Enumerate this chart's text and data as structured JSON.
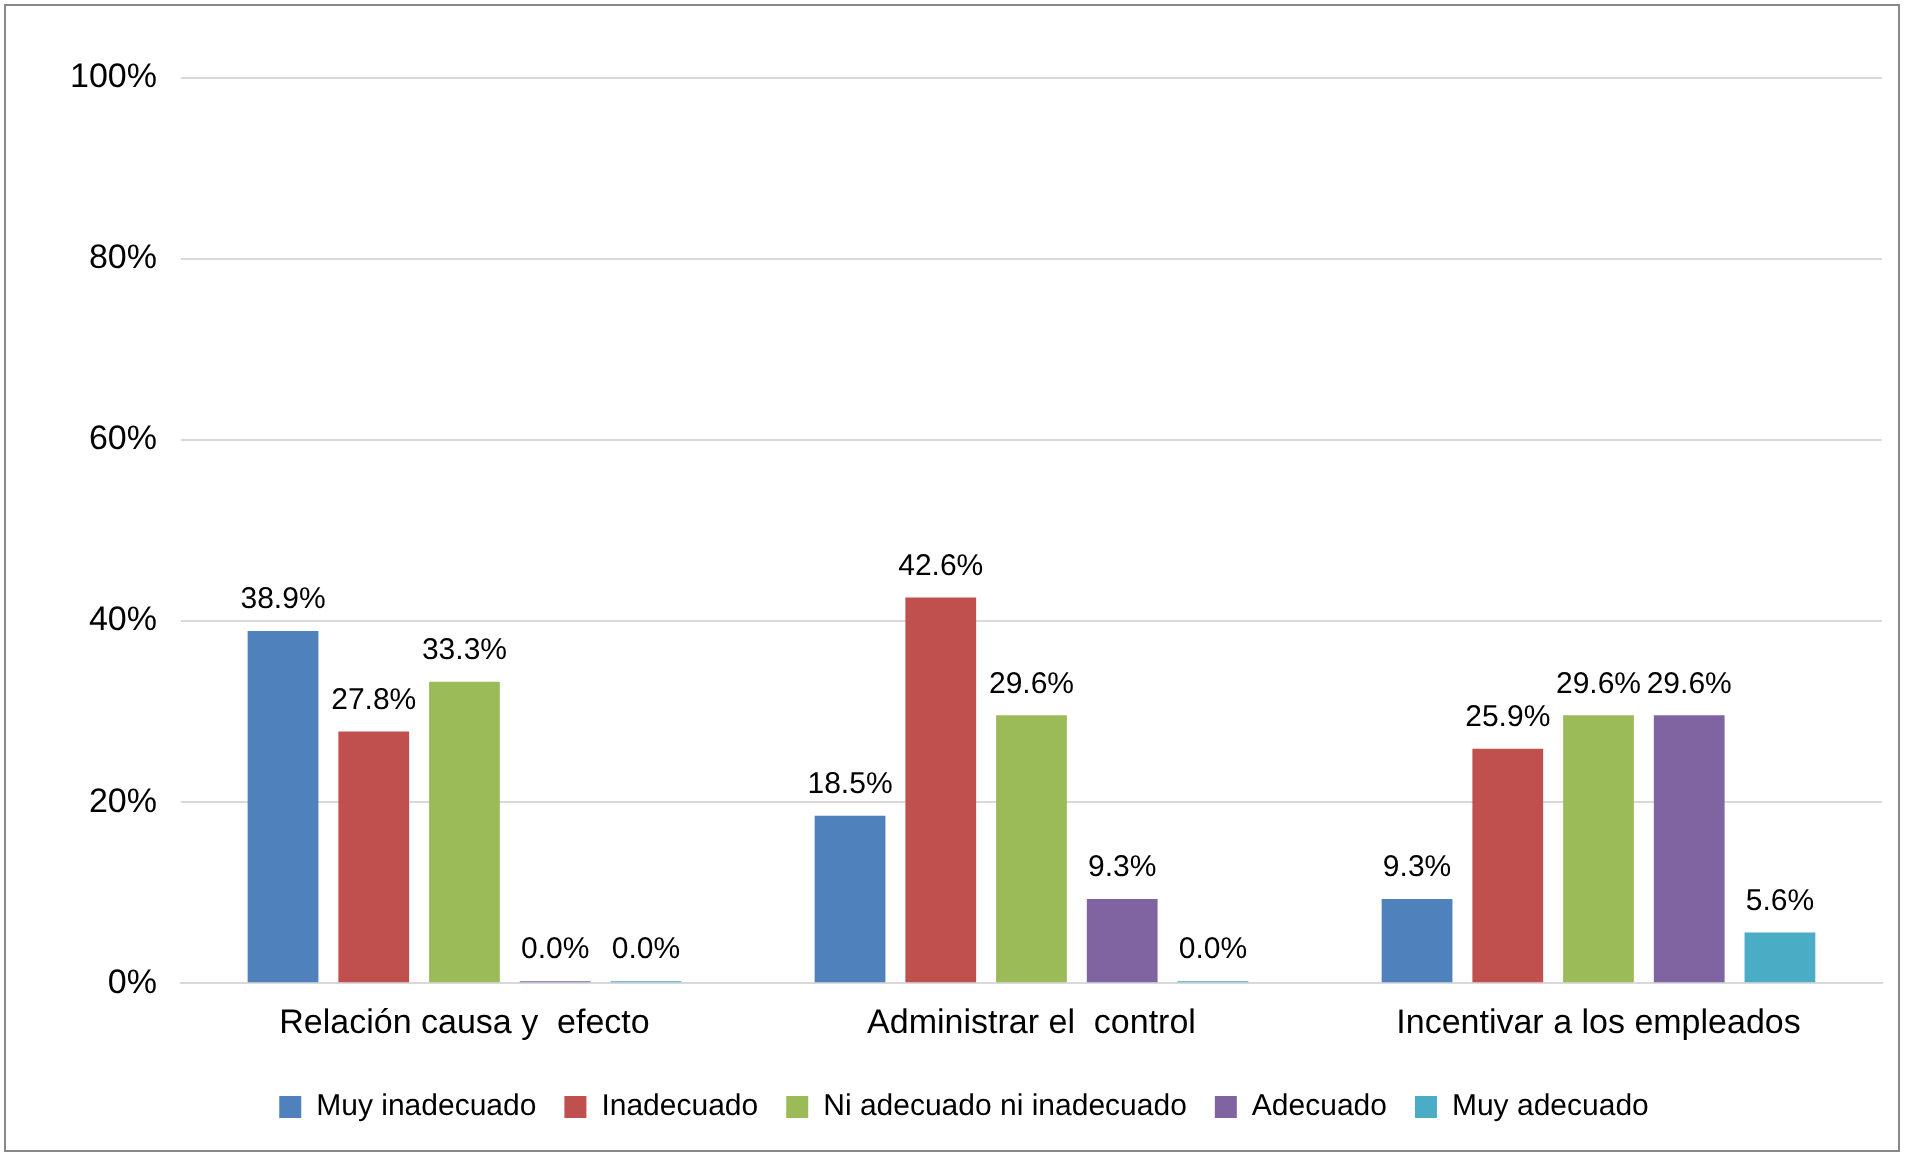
{
  "chart_data": {
    "type": "bar",
    "categories": [
      "Relación causa y  efecto",
      "Administrar el  control",
      "Incentivar a los empleados"
    ],
    "series": [
      {
        "name": "Muy inadecuado",
        "color": "#4f81bd",
        "values": [
          38.9,
          18.5,
          9.3
        ],
        "value_labels": [
          "38.9%",
          "18.5%",
          "9.3%"
        ]
      },
      {
        "name": "Inadecuado",
        "color": "#c0504d",
        "values": [
          27.8,
          42.6,
          25.9
        ],
        "value_labels": [
          "27.8%",
          "42.6%",
          "25.9%"
        ]
      },
      {
        "name": "Ni adecuado ni inadecuado",
        "color": "#9bbb59",
        "values": [
          33.3,
          29.6,
          29.6
        ],
        "value_labels": [
          "33.3%",
          "29.6%",
          "29.6%"
        ]
      },
      {
        "name": "Adecuado",
        "color": "#8064a2",
        "values": [
          0,
          9.3,
          29.6
        ],
        "value_labels": [
          "0.0%",
          "9.3%",
          "29.6%"
        ]
      },
      {
        "name": "Muy adecuado",
        "color": "#4bacc6",
        "values": [
          0,
          0,
          5.6
        ],
        "value_labels": [
          "0.0%",
          "0.0%",
          "5.6%"
        ]
      }
    ],
    "ylim": [
      0,
      100
    ],
    "yticks": [
      {
        "value": 0,
        "label": "0%"
      },
      {
        "value": 20,
        "label": "20%"
      },
      {
        "value": 40,
        "label": "40%"
      },
      {
        "value": 60,
        "label": "60%"
      },
      {
        "value": 80,
        "label": "80%"
      },
      {
        "value": 100,
        "label": "100%"
      }
    ],
    "grid": "y",
    "legend": "bottom"
  }
}
